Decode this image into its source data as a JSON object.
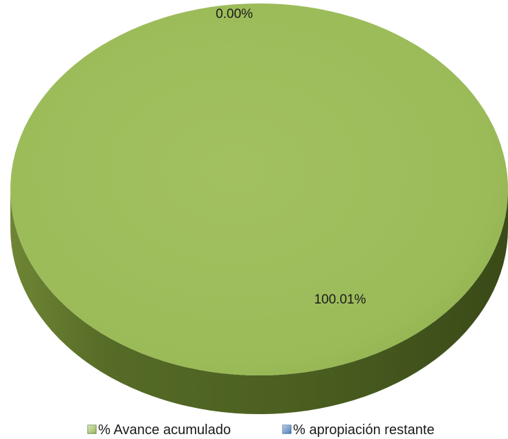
{
  "chart_data": {
    "type": "pie",
    "style": "3d",
    "categories": [
      "% Avance acumulado",
      "% apropiación restante"
    ],
    "values": [
      100.01,
      0.0
    ],
    "data_labels": [
      "100.01%",
      "0.00%"
    ],
    "colors": [
      "#9bbb59",
      "#4f81bd"
    ],
    "legend_placement": "bottom",
    "title": ""
  }
}
